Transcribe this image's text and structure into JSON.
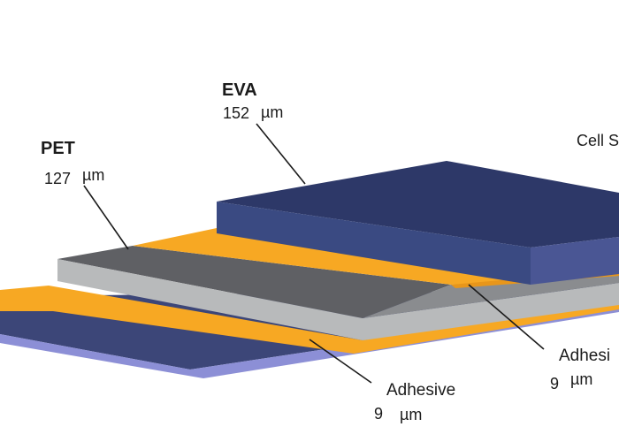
{
  "labels": {
    "eva": {
      "name": "EVA",
      "thickness": "152",
      "unit": "µm"
    },
    "pet": {
      "name": "PET",
      "thickness": "127",
      "unit": "µm"
    },
    "cell": {
      "name": "Cell S"
    },
    "adhesive_right": {
      "name": "Adhesi",
      "thickness": "9",
      "unit": "µm"
    },
    "adhesive_bottom": {
      "name": "Adhesive",
      "thickness": "9",
      "unit": "µm"
    }
  },
  "colors": {
    "eva_top": "#2d3868",
    "eva_front": "#3a4a82",
    "adhesive": "#f7a823",
    "adhesive_front": "#e8961a",
    "pet_top": "#5f6064",
    "pet_front": "#b8babb",
    "base_top": "#3c4678",
    "base_front": "#8c8fd6"
  }
}
